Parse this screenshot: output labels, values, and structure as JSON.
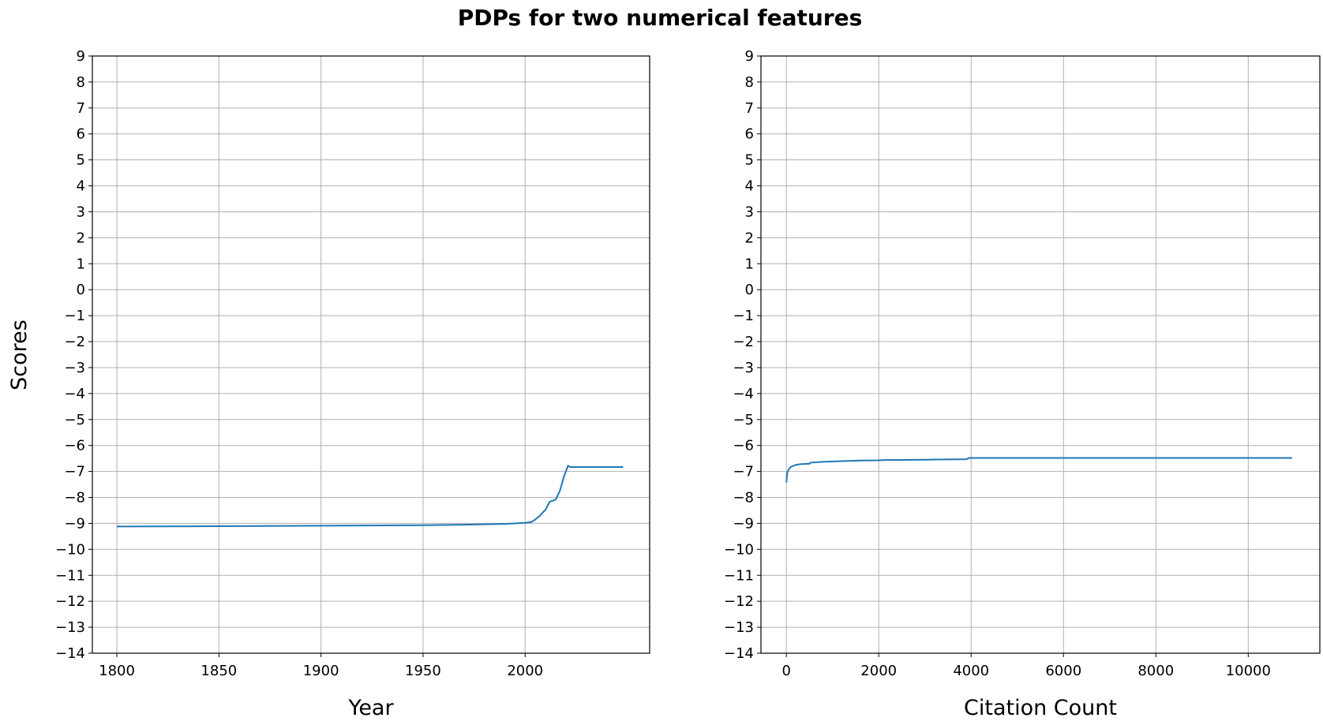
{
  "figure": {
    "title": "PDPs for two numerical features",
    "shared_ylabel": "Scores"
  },
  "chart_data": [
    {
      "type": "line",
      "xlabel": "Year",
      "ylabel": "Scores",
      "xlim": [
        1788,
        2061
      ],
      "ylim": [
        -14,
        9
      ],
      "xticks": [
        1800,
        1850,
        1900,
        1950,
        2000
      ],
      "yticks": [
        -14,
        -13,
        -12,
        -11,
        -10,
        -9,
        -8,
        -7,
        -6,
        -5,
        -4,
        -3,
        -2,
        -1,
        0,
        1,
        2,
        3,
        4,
        5,
        6,
        7,
        8,
        9
      ],
      "grid": true,
      "color": "#1f77b4",
      "x": [
        1800,
        1850,
        1900,
        1950,
        1970,
        1990,
        2000,
        2003,
        2005,
        2007,
        2010,
        2012,
        2015,
        2017,
        2019,
        2021,
        2022,
        2030,
        2048
      ],
      "y": [
        -9.12,
        -9.11,
        -9.09,
        -9.07,
        -9.05,
        -9.02,
        -8.98,
        -8.95,
        -8.85,
        -8.72,
        -8.47,
        -8.17,
        -8.08,
        -7.75,
        -7.2,
        -6.78,
        -6.83,
        -6.83,
        -6.83
      ]
    },
    {
      "type": "line",
      "xlabel": "Citation Count",
      "ylabel": "Scores",
      "xlim": [
        -550,
        11550
      ],
      "ylim": [
        -14,
        9
      ],
      "xticks": [
        0,
        2000,
        4000,
        6000,
        8000,
        10000
      ],
      "yticks": [
        -14,
        -13,
        -12,
        -11,
        -10,
        -9,
        -8,
        -7,
        -6,
        -5,
        -4,
        -3,
        -2,
        -1,
        0,
        1,
        2,
        3,
        4,
        5,
        6,
        7,
        8,
        9
      ],
      "grid": true,
      "color": "#1f77b4",
      "x": [
        0,
        20,
        50,
        100,
        200,
        300,
        500,
        520,
        800,
        1200,
        1600,
        2000,
        2100,
        3000,
        3200,
        3900,
        3950,
        5000,
        8000,
        10950
      ],
      "y": [
        -7.42,
        -7.05,
        -6.92,
        -6.82,
        -6.75,
        -6.72,
        -6.7,
        -6.66,
        -6.63,
        -6.6,
        -6.58,
        -6.57,
        -6.56,
        -6.55,
        -6.54,
        -6.53,
        -6.48,
        -6.48,
        -6.48,
        -6.48
      ]
    }
  ]
}
